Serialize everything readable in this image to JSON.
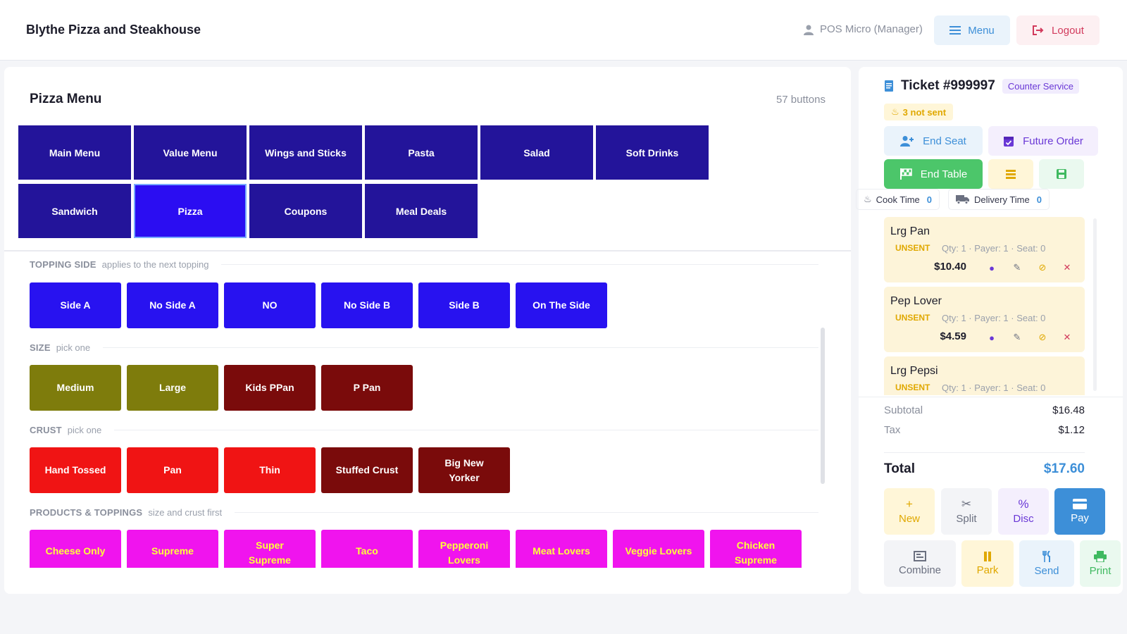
{
  "header": {
    "brand": "Blythe Pizza and Steakhouse",
    "user": "POS Micro (Manager)",
    "menu_label": "Menu",
    "logout_label": "Logout"
  },
  "menu": {
    "title": "Pizza Menu",
    "count": "57 buttons",
    "categories": [
      "Main Menu",
      "Value Menu",
      "Wings and Sticks",
      "Pasta",
      "Salad",
      "Soft Drinks",
      "Sandwich",
      "Pizza",
      "Coupons",
      "Meal Deals"
    ],
    "active_category": "Pizza"
  },
  "sections": {
    "topping_side": {
      "title": "TOPPING SIDE",
      "subtitle": "applies to the next topping",
      "options": [
        "Side A",
        "No Side A",
        "NO",
        "No Side B",
        "Side B",
        "On The Side"
      ]
    },
    "size": {
      "title": "SIZE",
      "subtitle": "pick one",
      "options": [
        "Medium",
        "Large",
        "Kids PPan",
        "P Pan"
      ]
    },
    "crust": {
      "title": "CRUST",
      "subtitle": "pick one",
      "options": [
        "Hand Tossed",
        "Pan",
        "Thin",
        "Stuffed Crust",
        "Big New Yorker"
      ]
    },
    "products": {
      "title": "PRODUCTS & TOPPINGS",
      "subtitle": "size and crust first",
      "options": [
        "Cheese Only",
        "Supreme",
        "Super Supreme",
        "Taco",
        "Pepperoni Lovers",
        "Meat Lovers",
        "Veggie Lovers",
        "Chicken Supreme"
      ]
    }
  },
  "colors": {
    "category": "#23149a",
    "category_active": "#2b0df2",
    "topping_side": "#2812f0",
    "size_green": "#7e7c0c",
    "dark_red": "#7a0b0b",
    "red": "#f01414",
    "magenta": "#f014ee",
    "magenta_text": "#ffff3a",
    "accent_blue": "#3d8fd8"
  },
  "ticket": {
    "number": "Ticket #999997",
    "service": "Counter Service",
    "not_sent": "3 not sent",
    "end_seat": "End Seat",
    "future_order": "Future Order",
    "end_table": "End Table",
    "cook_time_label": "Cook Time",
    "cook_time_value": "0",
    "delivery_time_label": "Delivery Time",
    "delivery_time_value": "0",
    "items": [
      {
        "name": "Lrg Pan",
        "status": "UNSENT",
        "meta": "Qty: 1 · Payer: 1 · Seat: 0",
        "price": "$10.40"
      },
      {
        "name": "Pep Lover",
        "status": "UNSENT",
        "meta": "Qty: 1 · Payer: 1 · Seat: 0",
        "price": "$4.59"
      },
      {
        "name": "Lrg Pepsi",
        "status": "UNSENT",
        "meta": "Qty: 1 · Payer: 1 · Seat: 0",
        "price": ""
      }
    ],
    "subtotal_label": "Subtotal",
    "subtotal": "$16.48",
    "tax_label": "Tax",
    "tax": "$1.12",
    "total_label": "Total",
    "total": "$17.60"
  },
  "actions": {
    "new": "New",
    "split": "Split",
    "disc": "Disc",
    "pay": "Pay",
    "combine": "Combine",
    "park": "Park",
    "send": "Send",
    "print": "Print"
  }
}
